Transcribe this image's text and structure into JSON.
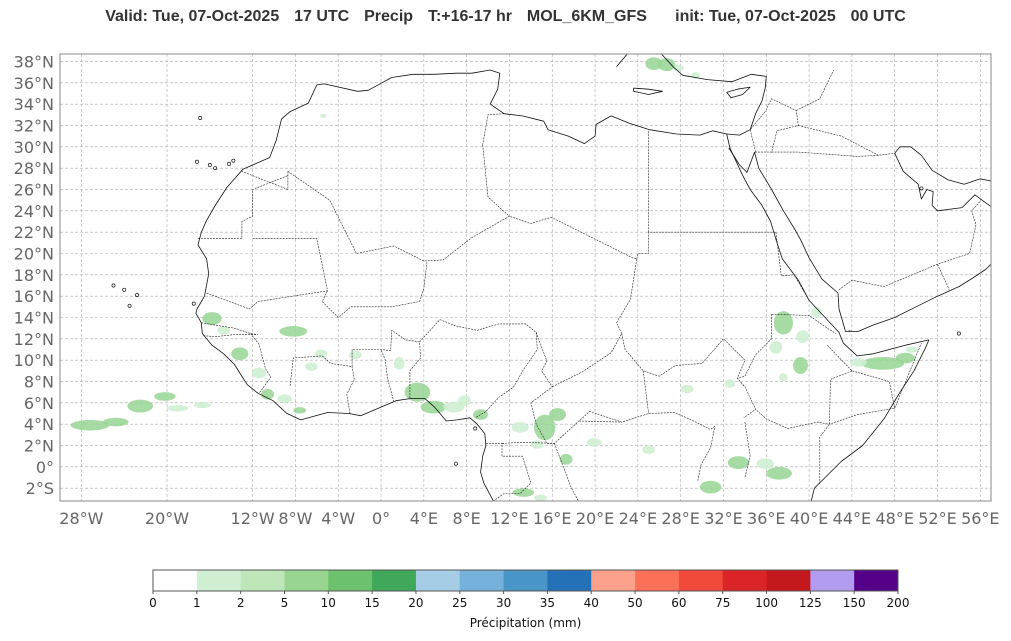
{
  "title": {
    "valid": "Valid: Tue, 07-Oct-2025",
    "utc": "17 UTC",
    "field": "Precip",
    "range": "T:+16-17 hr",
    "model": "MOL_6KM_GFS",
    "init": "init: Tue, 07-Oct-2025",
    "init_utc": "00 UTC"
  },
  "map": {
    "lon_range": [
      -30,
      57
    ],
    "lat_range": [
      -3.2,
      38.7
    ],
    "lat_ticks": [
      "38°N",
      "36°N",
      "34°N",
      "32°N",
      "30°N",
      "28°N",
      "26°N",
      "24°N",
      "22°N",
      "20°N",
      "18°N",
      "16°N",
      "14°N",
      "12°N",
      "10°N",
      "8°N",
      "6°N",
      "4°N",
      "2°N",
      "0°",
      "2°S"
    ],
    "lon_ticks": [
      "28°W",
      "20°W",
      "12°W",
      "8°W",
      "4°W",
      "0°",
      "4°E",
      "8°E",
      "12°E",
      "16°E",
      "20°E",
      "24°E",
      "28°E",
      "32°E",
      "36°E",
      "40°E",
      "44°E",
      "48°E",
      "52°E",
      "56°E"
    ],
    "colors": {
      "coast": "#111111",
      "border": "#222222",
      "grid": "#aaaaaa",
      "precip_light": "#cdeed1",
      "precip_mid": "#97d594"
    }
  },
  "colorbar": {
    "label": "Précipitation (mm)",
    "ticks": [
      "0",
      "1",
      "2",
      "5",
      "10",
      "15",
      "20",
      "25",
      "30",
      "35",
      "40",
      "50",
      "60",
      "75",
      "100",
      "125",
      "150",
      "200"
    ],
    "colors": [
      "#ffffff",
      "#d0efd2",
      "#bfe6b8",
      "#97d590",
      "#6bc16c",
      "#3fa85a",
      "#a6cde6",
      "#75b1da",
      "#4a95c8",
      "#2471b8",
      "#fba08a",
      "#fb7158",
      "#f24a3a",
      "#da2428",
      "#c5181d",
      "#b19cf0",
      "#540088"
    ]
  }
}
